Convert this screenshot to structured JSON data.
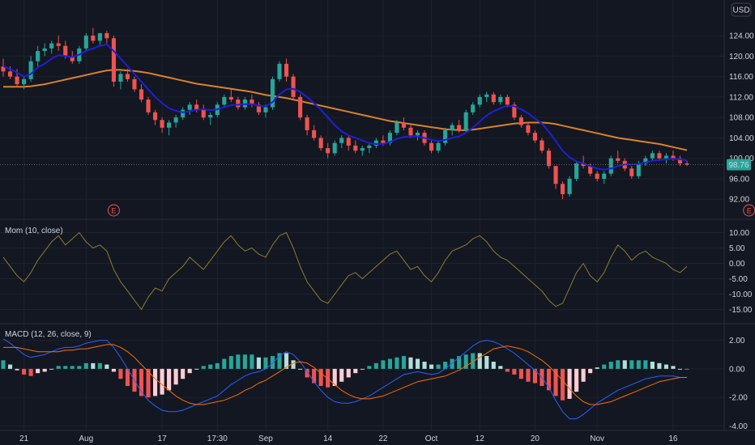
{
  "header": {
    "currency": "USD"
  },
  "price_badge": "98.76",
  "earnings_marker": "E",
  "colors": {
    "background": "#131722",
    "grid": "#1e222d",
    "up": "#26a69a",
    "down": "#ef5350",
    "ma_fast": "#1f1fd6",
    "ma_slow": "#d9822b",
    "momentum": "#8a7f2e",
    "macd_line": "#2962ff",
    "signal_line": "#ff6d00",
    "hist_pos": "#26a69a",
    "hist_pos_light": "#b2dfdb",
    "hist_neg": "#ef5350",
    "hist_neg_light": "#ffcdd2",
    "badge": "#26a69a",
    "text": "#d1d4dc"
  },
  "chart_data": [
    {
      "type": "candlestick",
      "y_ticks": [
        "124.00",
        "120.00",
        "116.00",
        "112.00",
        "108.00",
        "104.00",
        "100.00",
        "96.00",
        "92.00"
      ],
      "ylim": [
        89.5,
        127.5
      ],
      "current_price": 98.76,
      "x_ticks": [
        "21",
        "Aug",
        "17",
        "17:30",
        "Sep",
        "14",
        "22",
        "Oct",
        "12",
        "20",
        "Nov",
        "16"
      ],
      "earnings_markers_at_bar": [
        17,
        117
      ],
      "ohlc": [
        [
          118.0,
          119.5,
          116.0,
          117.0
        ],
        [
          117.0,
          118.0,
          115.5,
          116.0
        ],
        [
          116.0,
          117.5,
          114.0,
          114.5
        ],
        [
          114.5,
          116.0,
          113.5,
          115.5
        ],
        [
          115.5,
          120.0,
          115.0,
          119.0
        ],
        [
          119.0,
          122.0,
          118.0,
          121.0
        ],
        [
          121.0,
          122.5,
          120.0,
          121.5
        ],
        [
          121.5,
          123.0,
          120.5,
          122.5
        ],
        [
          122.5,
          124.0,
          121.0,
          122.0
        ],
        [
          122.0,
          123.0,
          119.5,
          120.0
        ],
        [
          120.0,
          121.0,
          118.5,
          119.0
        ],
        [
          119.0,
          122.0,
          118.5,
          121.5
        ],
        [
          121.5,
          124.5,
          121.0,
          124.0
        ],
        [
          124.0,
          125.5,
          122.5,
          123.0
        ],
        [
          123.0,
          124.5,
          122.0,
          124.5
        ],
        [
          124.5,
          125.0,
          122.5,
          123.5
        ],
        [
          123.5,
          124.0,
          114.0,
          115.0
        ],
        [
          115.0,
          117.0,
          113.5,
          116.5
        ],
        [
          116.5,
          117.5,
          115.0,
          115.5
        ],
        [
          115.5,
          116.0,
          113.0,
          113.5
        ],
        [
          113.5,
          114.5,
          111.0,
          111.5
        ],
        [
          111.5,
          112.0,
          108.5,
          109.0
        ],
        [
          109.0,
          109.5,
          106.5,
          107.5
        ],
        [
          107.5,
          108.0,
          105.0,
          106.0
        ],
        [
          106.0,
          107.5,
          104.5,
          107.0
        ],
        [
          107.0,
          108.5,
          106.0,
          108.0
        ],
        [
          108.0,
          110.0,
          107.5,
          109.5
        ],
        [
          109.5,
          111.0,
          108.5,
          110.5
        ],
        [
          110.5,
          111.5,
          109.0,
          109.5
        ],
        [
          109.5,
          110.5,
          107.5,
          108.0
        ],
        [
          108.0,
          109.0,
          106.5,
          108.5
        ],
        [
          108.5,
          111.0,
          108.0,
          110.5
        ],
        [
          110.5,
          112.5,
          110.0,
          112.0
        ],
        [
          112.0,
          113.5,
          111.0,
          111.5
        ],
        [
          111.5,
          112.0,
          109.5,
          110.0
        ],
        [
          110.0,
          112.0,
          109.5,
          111.5
        ],
        [
          111.5,
          112.5,
          110.0,
          110.5
        ],
        [
          110.5,
          111.0,
          108.5,
          109.0
        ],
        [
          109.0,
          110.5,
          108.0,
          110.0
        ],
        [
          110.0,
          116.0,
          109.5,
          115.5
        ],
        [
          115.5,
          119.0,
          115.0,
          118.5
        ],
        [
          118.5,
          119.5,
          115.0,
          116.0
        ],
        [
          116.0,
          116.5,
          111.5,
          112.0
        ],
        [
          112.0,
          112.5,
          107.5,
          108.0
        ],
        [
          108.0,
          108.5,
          104.5,
          105.5
        ],
        [
          105.5,
          106.5,
          103.5,
          104.0
        ],
        [
          104.0,
          104.5,
          101.5,
          102.0
        ],
        [
          102.0,
          103.0,
          100.0,
          101.0
        ],
        [
          101.0,
          103.5,
          100.5,
          103.0
        ],
        [
          103.0,
          104.5,
          102.0,
          104.0
        ],
        [
          104.0,
          104.5,
          101.5,
          102.5
        ],
        [
          102.5,
          103.5,
          101.0,
          101.5
        ],
        [
          101.5,
          102.5,
          100.5,
          102.0
        ],
        [
          102.0,
          103.0,
          101.0,
          102.5
        ],
        [
          102.5,
          104.0,
          102.0,
          103.5
        ],
        [
          103.5,
          104.5,
          102.5,
          103.0
        ],
        [
          103.0,
          105.5,
          102.5,
          105.0
        ],
        [
          105.0,
          107.5,
          104.5,
          107.0
        ],
        [
          107.0,
          108.0,
          105.5,
          106.0
        ],
        [
          106.0,
          106.5,
          104.0,
          104.5
        ],
        [
          104.5,
          105.5,
          103.5,
          105.0
        ],
        [
          105.0,
          105.5,
          102.5,
          103.0
        ],
        [
          103.0,
          103.5,
          101.0,
          101.5
        ],
        [
          101.5,
          103.5,
          101.0,
          103.0
        ],
        [
          103.0,
          106.0,
          102.5,
          105.5
        ],
        [
          105.5,
          107.0,
          104.5,
          106.5
        ],
        [
          106.5,
          107.5,
          105.0,
          105.5
        ],
        [
          105.5,
          109.5,
          105.0,
          109.0
        ],
        [
          109.0,
          111.0,
          108.5,
          110.5
        ],
        [
          110.5,
          112.5,
          110.0,
          112.0
        ],
        [
          112.0,
          113.0,
          111.0,
          112.5
        ],
        [
          112.5,
          113.0,
          110.5,
          111.0
        ],
        [
          111.0,
          112.5,
          110.5,
          112.0
        ],
        [
          112.0,
          112.5,
          110.0,
          110.5
        ],
        [
          110.5,
          111.0,
          107.5,
          108.0
        ],
        [
          108.0,
          108.5,
          106.0,
          106.5
        ],
        [
          106.5,
          107.0,
          104.5,
          105.0
        ],
        [
          105.0,
          105.5,
          103.0,
          103.5
        ],
        [
          103.5,
          104.0,
          101.0,
          101.5
        ],
        [
          101.5,
          102.0,
          98.0,
          98.5
        ],
        [
          98.5,
          98.5,
          94.0,
          95.0
        ],
        [
          95.0,
          95.5,
          92.0,
          93.0
        ],
        [
          93.0,
          96.5,
          92.5,
          96.0
        ],
        [
          96.0,
          99.5,
          95.5,
          99.0
        ],
        [
          99.0,
          100.5,
          98.0,
          98.5
        ],
        [
          98.5,
          99.0,
          96.5,
          97.0
        ],
        [
          97.0,
          97.5,
          95.5,
          96.0
        ],
        [
          96.0,
          97.5,
          95.0,
          97.0
        ],
        [
          97.0,
          100.5,
          96.5,
          100.0
        ],
        [
          100.0,
          101.5,
          99.0,
          99.5
        ],
        [
          99.5,
          100.0,
          97.5,
          98.0
        ],
        [
          98.0,
          98.5,
          96.0,
          96.5
        ],
        [
          96.5,
          99.5,
          96.0,
          99.0
        ],
        [
          99.0,
          100.5,
          98.5,
          100.0
        ],
        [
          100.0,
          101.5,
          99.5,
          101.0
        ],
        [
          101.0,
          101.5,
          99.5,
          100.0
        ],
        [
          100.0,
          101.0,
          99.0,
          100.5
        ],
        [
          100.5,
          101.5,
          99.5,
          100.0
        ],
        [
          100.0,
          100.5,
          98.5,
          99.0
        ],
        [
          99.0,
          99.5,
          98.5,
          98.76
        ]
      ],
      "ma_fast": [
        118.0,
        117.5,
        116.8,
        116.0,
        116.5,
        117.8,
        118.5,
        119.5,
        120.2,
        120.0,
        119.8,
        120.3,
        121.0,
        121.5,
        122.0,
        122.3,
        121.0,
        119.5,
        118.0,
        116.5,
        115.0,
        113.5,
        112.0,
        110.8,
        109.8,
        109.3,
        109.0,
        109.2,
        109.5,
        109.6,
        109.4,
        109.6,
        110.0,
        110.4,
        110.5,
        110.6,
        110.6,
        110.3,
        110.2,
        111.0,
        112.5,
        113.5,
        113.6,
        113.0,
        112.0,
        110.8,
        109.5,
        108.0,
        106.5,
        105.3,
        104.5,
        104.0,
        103.5,
        103.0,
        102.8,
        102.8,
        103.2,
        103.8,
        104.2,
        104.3,
        104.3,
        104.0,
        103.6,
        103.4,
        103.6,
        104.0,
        104.3,
        105.0,
        106.0,
        107.2,
        108.4,
        109.2,
        109.8,
        110.3,
        110.2,
        109.6,
        108.8,
        107.8,
        106.8,
        105.2,
        103.4,
        101.5,
        100.2,
        99.4,
        99.0,
        98.5,
        98.0,
        97.8,
        98.0,
        98.5,
        98.8,
        98.8,
        98.9,
        99.2,
        99.5,
        99.7,
        99.8,
        99.9,
        99.8,
        99.6
      ],
      "ma_slow": [
        114.0,
        114.0,
        114.0,
        114.0,
        114.1,
        114.3,
        114.5,
        114.8,
        115.1,
        115.4,
        115.7,
        116.0,
        116.3,
        116.6,
        116.9,
        117.2,
        117.3,
        117.3,
        117.2,
        117.1,
        116.9,
        116.7,
        116.4,
        116.1,
        115.8,
        115.5,
        115.2,
        114.9,
        114.6,
        114.4,
        114.2,
        114.0,
        113.8,
        113.6,
        113.4,
        113.2,
        113.0,
        112.7,
        112.4,
        112.2,
        112.0,
        111.8,
        111.5,
        111.2,
        110.9,
        110.6,
        110.3,
        110.0,
        109.7,
        109.4,
        109.1,
        108.8,
        108.5,
        108.2,
        107.9,
        107.6,
        107.3,
        107.1,
        106.9,
        106.7,
        106.5,
        106.3,
        106.1,
        105.9,
        105.7,
        105.6,
        105.5,
        105.5,
        105.6,
        105.8,
        106.0,
        106.2,
        106.4,
        106.6,
        106.8,
        106.9,
        107.0,
        107.0,
        107.0,
        106.9,
        106.7,
        106.4,
        106.1,
        105.8,
        105.5,
        105.2,
        104.9,
        104.6,
        104.3,
        104.0,
        103.8,
        103.6,
        103.4,
        103.2,
        103.0,
        102.8,
        102.5,
        102.2,
        101.9,
        101.6
      ]
    },
    {
      "type": "line",
      "title": "Mom (10, close)",
      "y_ticks": [
        "10.00",
        "5.00",
        "0.00",
        "-5.00",
        "-10.00",
        "-15.00"
      ],
      "ylim": [
        -17.5,
        12.5
      ],
      "values": [
        2,
        -1,
        -4,
        -6,
        -3,
        1,
        4,
        7,
        9,
        6,
        8,
        10,
        7,
        5,
        6,
        4,
        -2,
        -6,
        -9,
        -12,
        -15,
        -11,
        -8,
        -9,
        -5,
        -3,
        -1,
        2,
        0,
        -2,
        1,
        4,
        7,
        9,
        6,
        4,
        5,
        3,
        2,
        6,
        9,
        10,
        5,
        -1,
        -6,
        -9,
        -12,
        -13,
        -10,
        -7,
        -4,
        -3,
        -5,
        -3,
        -1,
        1,
        3,
        4,
        1,
        -2,
        -1,
        -4,
        -6,
        -3,
        1,
        4,
        5,
        6,
        8,
        9,
        7,
        4,
        2,
        1,
        -1,
        -3,
        -5,
        -7,
        -9,
        -12,
        -14,
        -13,
        -8,
        -3,
        0,
        -4,
        -6,
        -3,
        2,
        6,
        4,
        1,
        3,
        4,
        2,
        1,
        0,
        -2,
        -3,
        -1
      ]
    },
    {
      "type": "line+bar",
      "title": "MACD (12, 26, close, 9)",
      "y_ticks": [
        "2.00",
        "0.00",
        "-2.00",
        "-4.00"
      ],
      "ylim": [
        -4.2,
        2.6
      ],
      "macd": [
        2.1,
        1.8,
        1.4,
        1.0,
        0.8,
        0.9,
        1.0,
        1.2,
        1.4,
        1.5,
        1.5,
        1.6,
        1.8,
        1.9,
        2.0,
        2.0,
        1.5,
        0.8,
        0.0,
        -0.8,
        -1.6,
        -2.2,
        -2.6,
        -2.9,
        -3.0,
        -3.0,
        -2.9,
        -2.7,
        -2.5,
        -2.3,
        -2.1,
        -1.9,
        -1.5,
        -1.1,
        -0.8,
        -0.5,
        -0.3,
        -0.2,
        0.0,
        0.4,
        0.9,
        1.2,
        1.0,
        0.5,
        -0.2,
        -0.9,
        -1.5,
        -2.0,
        -2.3,
        -2.4,
        -2.4,
        -2.3,
        -2.1,
        -1.9,
        -1.6,
        -1.3,
        -1.0,
        -0.7,
        -0.4,
        -0.3,
        -0.2,
        -0.3,
        -0.4,
        -0.3,
        0.0,
        0.4,
        0.8,
        1.2,
        1.6,
        1.9,
        2.0,
        1.9,
        1.7,
        1.4,
        1.1,
        0.7,
        0.3,
        -0.1,
        -0.6,
        -1.3,
        -2.2,
        -3.0,
        -3.5,
        -3.5,
        -3.2,
        -2.8,
        -2.4,
        -2.1,
        -1.8,
        -1.5,
        -1.3,
        -1.1,
        -0.9,
        -0.7,
        -0.6,
        -0.5,
        -0.5,
        -0.5,
        -0.6,
        -0.6
      ],
      "signal": [
        1.5,
        1.5,
        1.5,
        1.4,
        1.3,
        1.2,
        1.2,
        1.2,
        1.2,
        1.3,
        1.3,
        1.4,
        1.4,
        1.5,
        1.6,
        1.7,
        1.7,
        1.5,
        1.2,
        0.8,
        0.3,
        -0.2,
        -0.7,
        -1.1,
        -1.5,
        -1.9,
        -2.2,
        -2.4,
        -2.5,
        -2.5,
        -2.4,
        -2.3,
        -2.2,
        -2.0,
        -1.8,
        -1.5,
        -1.3,
        -1.0,
        -0.8,
        -0.5,
        -0.2,
        0.1,
        0.4,
        0.5,
        0.4,
        0.1,
        -0.3,
        -0.7,
        -1.1,
        -1.5,
        -1.8,
        -2.0,
        -2.1,
        -2.1,
        -2.0,
        -1.9,
        -1.7,
        -1.5,
        -1.3,
        -1.1,
        -0.9,
        -0.8,
        -0.7,
        -0.6,
        -0.5,
        -0.3,
        -0.1,
        0.2,
        0.5,
        0.8,
        1.1,
        1.4,
        1.5,
        1.6,
        1.5,
        1.4,
        1.2,
        0.9,
        0.6,
        0.2,
        -0.3,
        -0.8,
        -1.4,
        -1.9,
        -2.3,
        -2.5,
        -2.5,
        -2.4,
        -2.3,
        -2.1,
        -1.9,
        -1.7,
        -1.5,
        -1.3,
        -1.1,
        -0.9,
        -0.8,
        -0.7,
        -0.6,
        -0.6
      ]
    }
  ]
}
